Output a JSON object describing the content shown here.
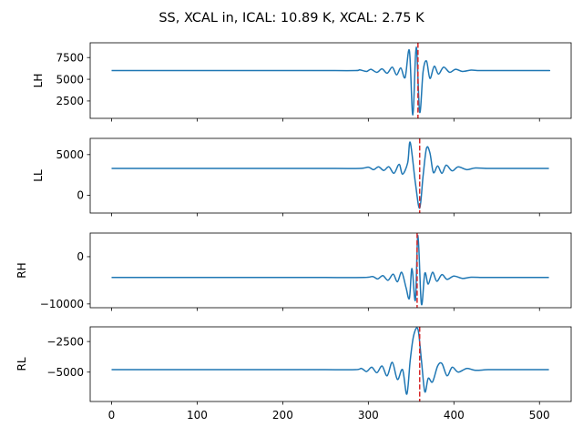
{
  "figure": {
    "title": "SS, XCAL in, ICAL: 10.89 K, XCAL: 2.75 K"
  },
  "chart_data": [
    {
      "type": "line",
      "ylabel": "LH",
      "xlim": [
        -25,
        537
      ],
      "ylim": [
        500,
        9200
      ],
      "yticks": [
        2500,
        5000,
        7500
      ],
      "ytick_labels": [
        "2500",
        "5000",
        "7500"
      ],
      "xticks": [
        0,
        100,
        200,
        300,
        400,
        500
      ],
      "marker_x": 358,
      "baseline": 6000,
      "features": [
        [
          250,
          6000
        ],
        [
          285,
          6000
        ],
        [
          290,
          6080
        ],
        [
          298,
          5900
        ],
        [
          303,
          6150
        ],
        [
          310,
          5800
        ],
        [
          316,
          6200
        ],
        [
          322,
          5700
        ],
        [
          328,
          6400
        ],
        [
          333,
          5500
        ],
        [
          338,
          6300
        ],
        [
          343,
          5200
        ],
        [
          348,
          8300
        ],
        [
          352,
          900
        ],
        [
          356,
          8700
        ],
        [
          360,
          1200
        ],
        [
          364,
          5900
        ],
        [
          368,
          7100
        ],
        [
          372,
          5100
        ],
        [
          377,
          6500
        ],
        [
          382,
          5600
        ],
        [
          388,
          6400
        ],
        [
          395,
          5800
        ],
        [
          402,
          6150
        ],
        [
          410,
          5900
        ],
        [
          420,
          6050
        ],
        [
          430,
          6000
        ]
      ]
    },
    {
      "type": "line",
      "ylabel": "LL",
      "xlim": [
        -25,
        537
      ],
      "ylim": [
        -2200,
        7000
      ],
      "yticks": [
        0,
        5000
      ],
      "ytick_labels": [
        "0",
        "5000"
      ],
      "xticks": [
        0,
        100,
        200,
        300,
        400,
        500
      ],
      "marker_x": 360,
      "baseline": 3300,
      "features": [
        [
          250,
          3300
        ],
        [
          290,
          3300
        ],
        [
          300,
          3450
        ],
        [
          306,
          3150
        ],
        [
          312,
          3500
        ],
        [
          318,
          3050
        ],
        [
          324,
          3500
        ],
        [
          330,
          2700
        ],
        [
          336,
          3800
        ],
        [
          340,
          2600
        ],
        [
          346,
          4000
        ],
        [
          349,
          6500
        ],
        [
          355,
          1500
        ],
        [
          360,
          -1600
        ],
        [
          364,
          2400
        ],
        [
          368,
          5800
        ],
        [
          372,
          5200
        ],
        [
          376,
          2800
        ],
        [
          381,
          3600
        ],
        [
          386,
          2700
        ],
        [
          391,
          3700
        ],
        [
          398,
          3000
        ],
        [
          405,
          3500
        ],
        [
          415,
          3150
        ],
        [
          425,
          3350
        ],
        [
          440,
          3300
        ]
      ]
    },
    {
      "type": "line",
      "ylabel": "RH",
      "xlim": [
        -25,
        537
      ],
      "ylim": [
        -10800,
        5000
      ],
      "yticks": [
        -10000,
        0
      ],
      "ytick_labels": [
        "−10000",
        "0"
      ],
      "xticks": [
        0,
        100,
        200,
        300,
        400,
        500
      ],
      "marker_x": 357,
      "baseline": -4400,
      "features": [
        [
          250,
          -4400
        ],
        [
          295,
          -4400
        ],
        [
          305,
          -4200
        ],
        [
          311,
          -4700
        ],
        [
          317,
          -4000
        ],
        [
          323,
          -5000
        ],
        [
          329,
          -3700
        ],
        [
          334,
          -5300
        ],
        [
          339,
          -3300
        ],
        [
          344,
          -6500
        ],
        [
          348,
          -8800
        ],
        [
          351,
          -2500
        ],
        [
          355,
          -9200
        ],
        [
          358,
          4500
        ],
        [
          362,
          -10000
        ],
        [
          366,
          -3500
        ],
        [
          370,
          -5800
        ],
        [
          375,
          -3300
        ],
        [
          380,
          -5200
        ],
        [
          386,
          -3800
        ],
        [
          392,
          -4800
        ],
        [
          400,
          -4100
        ],
        [
          410,
          -4600
        ],
        [
          420,
          -4350
        ],
        [
          435,
          -4400
        ]
      ]
    },
    {
      "type": "line",
      "ylabel": "RL",
      "xlim": [
        -25,
        537
      ],
      "ylim": [
        -7400,
        -1300
      ],
      "yticks": [
        -5000,
        -2500
      ],
      "ytick_labels": [
        "−5000",
        "−2500"
      ],
      "xticks": [
        0,
        100,
        200,
        300,
        400,
        500
      ],
      "xtick_labels": [
        "0",
        "100",
        "200",
        "300",
        "400",
        "500"
      ],
      "marker_x": 360,
      "baseline": -4800,
      "features": [
        [
          250,
          -4800
        ],
        [
          285,
          -4800
        ],
        [
          292,
          -4700
        ],
        [
          298,
          -4950
        ],
        [
          304,
          -4600
        ],
        [
          310,
          -5050
        ],
        [
          316,
          -4500
        ],
        [
          322,
          -5300
        ],
        [
          328,
          -4200
        ],
        [
          334,
          -5600
        ],
        [
          340,
          -4800
        ],
        [
          345,
          -6800
        ],
        [
          349,
          -4000
        ],
        [
          353,
          -2000
        ],
        [
          358,
          -1500
        ],
        [
          362,
          -4000
        ],
        [
          366,
          -6600
        ],
        [
          370,
          -5500
        ],
        [
          375,
          -5800
        ],
        [
          381,
          -4500
        ],
        [
          386,
          -4300
        ],
        [
          392,
          -5300
        ],
        [
          398,
          -4600
        ],
        [
          405,
          -5000
        ],
        [
          415,
          -4700
        ],
        [
          425,
          -4850
        ],
        [
          440,
          -4800
        ]
      ]
    }
  ],
  "style": {
    "line_color": "#1f77b4",
    "marker_color": "#d62728"
  }
}
